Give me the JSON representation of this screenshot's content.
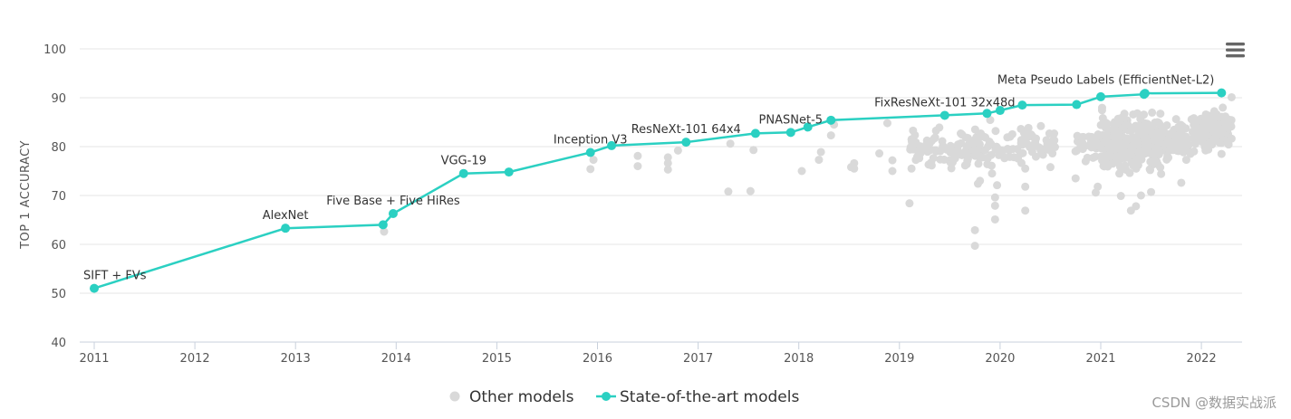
{
  "chart_data": {
    "type": "scatter",
    "ylabel": "TOP 1 ACCURACY",
    "xlabel": "",
    "xlim": [
      2011,
      2022.4
    ],
    "ylim": [
      40,
      100
    ],
    "x_ticks": [
      "2011",
      "2012",
      "2013",
      "2014",
      "2015",
      "2016",
      "2017",
      "2018",
      "2019",
      "2020",
      "2021",
      "2022"
    ],
    "y_ticks": [
      "40",
      "50",
      "60",
      "70",
      "80",
      "90",
      "100"
    ],
    "grid": "horizontal",
    "legend": [
      {
        "name": "Other models",
        "color": "#d9d9d9",
        "marker": "circle"
      },
      {
        "name": "State-of-the-art models",
        "color": "#2bd0c2",
        "marker": "line-circle"
      }
    ],
    "series": [
      {
        "name": "State-of-the-art models",
        "color": "#2bd0c2",
        "points": [
          {
            "x": 2011.0,
            "y": 51.0,
            "label": "SIFT + FVs"
          },
          {
            "x": 2012.9,
            "y": 63.3,
            "label": "AlexNet"
          },
          {
            "x": 2013.87,
            "y": 64.0
          },
          {
            "x": 2013.97,
            "y": 66.3,
            "label": "Five Base + Five HiRes"
          },
          {
            "x": 2014.67,
            "y": 74.5,
            "label": "VGG-19"
          },
          {
            "x": 2015.12,
            "y": 74.8
          },
          {
            "x": 2015.93,
            "y": 78.8,
            "label": "Inception V3"
          },
          {
            "x": 2016.14,
            "y": 80.2
          },
          {
            "x": 2016.88,
            "y": 80.9,
            "label": "ResNeXt-101 64x4"
          },
          {
            "x": 2017.57,
            "y": 82.7
          },
          {
            "x": 2017.92,
            "y": 82.9,
            "label": "PNASNet-5"
          },
          {
            "x": 2018.09,
            "y": 84.0
          },
          {
            "x": 2018.32,
            "y": 85.4
          },
          {
            "x": 2019.45,
            "y": 86.4,
            "label": "FixResNeXt-101 32x48d"
          },
          {
            "x": 2019.87,
            "y": 86.8
          },
          {
            "x": 2020.0,
            "y": 87.4
          },
          {
            "x": 2020.22,
            "y": 88.5
          },
          {
            "x": 2020.76,
            "y": 88.6
          },
          {
            "x": 2021.0,
            "y": 90.2
          },
          {
            "x": 2021.43,
            "y": 90.7
          },
          {
            "x": 2021.44,
            "y": 90.9
          },
          {
            "x": 2022.2,
            "y": 91.0,
            "label": "Meta Pseudo Labels (EfficientNet-L2)"
          }
        ]
      },
      {
        "name": "Other models",
        "color": "#d9d9d9",
        "points": [
          {
            "x": 2013.88,
            "y": 62.6
          },
          {
            "x": 2015.93,
            "y": 75.4
          },
          {
            "x": 2015.96,
            "y": 77.3
          },
          {
            "x": 2016.4,
            "y": 76.0
          },
          {
            "x": 2016.4,
            "y": 78.1
          },
          {
            "x": 2016.7,
            "y": 75.3
          },
          {
            "x": 2016.7,
            "y": 76.6
          },
          {
            "x": 2016.7,
            "y": 77.8
          },
          {
            "x": 2016.8,
            "y": 79.2
          },
          {
            "x": 2017.3,
            "y": 70.8
          },
          {
            "x": 2017.32,
            "y": 80.6
          },
          {
            "x": 2017.52,
            "y": 70.9
          },
          {
            "x": 2017.55,
            "y": 79.3
          },
          {
            "x": 2018.03,
            "y": 75.0
          },
          {
            "x": 2018.2,
            "y": 77.3
          },
          {
            "x": 2018.22,
            "y": 78.9
          },
          {
            "x": 2018.32,
            "y": 82.3
          },
          {
            "x": 2018.35,
            "y": 84.5
          },
          {
            "x": 2018.52,
            "y": 75.8
          },
          {
            "x": 2018.55,
            "y": 76.6
          },
          {
            "x": 2018.55,
            "y": 75.5
          },
          {
            "x": 2018.8,
            "y": 78.6
          },
          {
            "x": 2018.88,
            "y": 84.8
          },
          {
            "x": 2018.93,
            "y": 75.0
          },
          {
            "x": 2018.93,
            "y": 77.2
          },
          {
            "x": 2019.1,
            "y": 68.4
          },
          {
            "x": 2019.12,
            "y": 75.5
          },
          {
            "x": 2019.75,
            "y": 59.7
          },
          {
            "x": 2019.75,
            "y": 62.9
          },
          {
            "x": 2019.78,
            "y": 72.4
          },
          {
            "x": 2019.8,
            "y": 73.0
          },
          {
            "x": 2019.95,
            "y": 65.1
          },
          {
            "x": 2019.95,
            "y": 67.9
          },
          {
            "x": 2019.95,
            "y": 69.6
          },
          {
            "x": 2019.97,
            "y": 72.1
          },
          {
            "x": 2019.92,
            "y": 74.5
          },
          {
            "x": 2020.25,
            "y": 66.9
          },
          {
            "x": 2020.25,
            "y": 71.8
          },
          {
            "x": 2020.25,
            "y": 75.5
          },
          {
            "x": 2020.2,
            "y": 78.5
          },
          {
            "x": 2020.5,
            "y": 75.8
          },
          {
            "x": 2020.52,
            "y": 78.6
          },
          {
            "x": 2020.75,
            "y": 73.5
          },
          {
            "x": 2020.95,
            "y": 70.6
          },
          {
            "x": 2020.97,
            "y": 71.8
          },
          {
            "x": 2020.85,
            "y": 77.0
          },
          {
            "x": 2020.9,
            "y": 80.5
          },
          {
            "x": 2021.1,
            "y": 80.5
          },
          {
            "x": 2021.05,
            "y": 83.8
          },
          {
            "x": 2021.2,
            "y": 69.9
          },
          {
            "x": 2021.3,
            "y": 66.9
          },
          {
            "x": 2021.35,
            "y": 67.8
          },
          {
            "x": 2021.4,
            "y": 70.0
          },
          {
            "x": 2021.5,
            "y": 70.7
          },
          {
            "x": 2021.6,
            "y": 74.4
          },
          {
            "x": 2021.8,
            "y": 72.6
          },
          {
            "x": 2021.85,
            "y": 77.3
          },
          {
            "x": 2022.2,
            "y": 78.5
          },
          {
            "x": 2022.3,
            "y": 90.1
          }
        ],
        "clusters": [
          {
            "x": [
              2019.1,
              2019.75
            ],
            "y": [
              74.5,
              85.0
            ],
            "count": 90
          },
          {
            "x": [
              2019.75,
              2020.25
            ],
            "y": [
              73.0,
              86.5
            ],
            "count": 55
          },
          {
            "x": [
              2020.25,
              2020.55
            ],
            "y": [
              76.0,
              85.5
            ],
            "count": 30
          },
          {
            "x": [
              2020.7,
              2021.0
            ],
            "y": [
              76.0,
              85.5
            ],
            "count": 28
          },
          {
            "x": [
              2021.0,
              2021.6
            ],
            "y": [
              73.0,
              88.5
            ],
            "count": 300
          },
          {
            "x": [
              2021.6,
              2021.9
            ],
            "y": [
              75.0,
              87.0
            ],
            "count": 55
          },
          {
            "x": [
              2021.9,
              2022.3
            ],
            "y": [
              78.0,
              89.0
            ],
            "count": 120
          }
        ]
      }
    ]
  },
  "toolbar": {
    "menu_icon": "hamburger-menu-icon"
  },
  "watermark": "CSDN @数据实战派"
}
